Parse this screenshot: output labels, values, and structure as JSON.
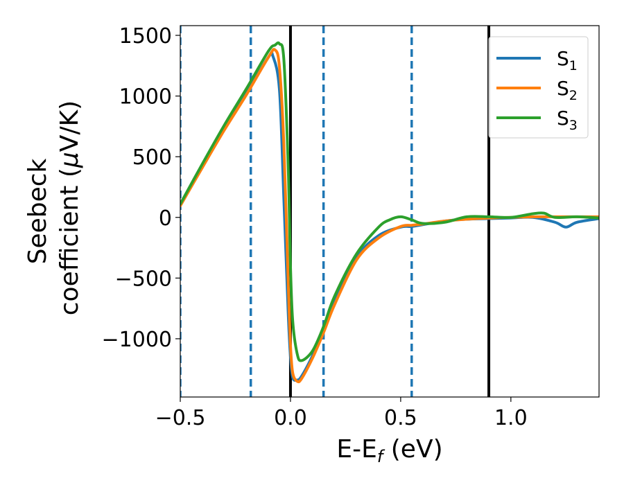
{
  "chart_data": {
    "type": "line",
    "xlabel": "E-E",
    "xlabel_sub": "f",
    "xlabel_unit": " (eV)",
    "ylabel_line1": "Seebeck",
    "ylabel_line2": "coefficient  (",
    "ylabel_mu": "μ",
    "ylabel_unit": "V/K)",
    "xlim": [
      -0.5,
      1.4
    ],
    "ylim": [
      -1480,
      1580
    ],
    "x_ticks": [
      -0.5,
      0.0,
      0.5,
      1.0
    ],
    "x_tick_labels": [
      "−0.5",
      "0.0",
      "0.5",
      "1.0"
    ],
    "y_ticks": [
      -1000,
      -500,
      0,
      500,
      1000,
      1500
    ],
    "y_tick_labels": [
      "−1000",
      "−500",
      "0",
      "500",
      "1000",
      "1500"
    ],
    "grid": false,
    "legend_position": "top-right",
    "vlines_dashed": [
      -0.5,
      -0.18,
      0.15,
      0.55
    ],
    "vlines_solid": [
      0.0,
      0.9
    ],
    "series": [
      {
        "name": "S",
        "name_sub": "1",
        "color": "#1f77b4",
        "x": [
          -0.5,
          -0.4,
          -0.3,
          -0.2,
          -0.1,
          -0.08,
          -0.05,
          -0.03,
          -0.01,
          0.0,
          0.01,
          0.03,
          0.05,
          0.1,
          0.15,
          0.2,
          0.3,
          0.4,
          0.5,
          0.55,
          0.6,
          0.7,
          0.8,
          0.9,
          1.0,
          1.1,
          1.2,
          1.25,
          1.3,
          1.4
        ],
        "y": [
          100,
          420,
          730,
          1020,
          1320,
          1330,
          1050,
          150,
          -800,
          -1150,
          -1320,
          -1340,
          -1310,
          -1140,
          -930,
          -700,
          -330,
          -150,
          -80,
          -75,
          -60,
          -30,
          -15,
          -10,
          -5,
          0,
          -40,
          -80,
          -40,
          -10
        ]
      },
      {
        "name": "S",
        "name_sub": "2",
        "color": "#ff7f0e",
        "x": [
          -0.5,
          -0.4,
          -0.3,
          -0.2,
          -0.1,
          -0.07,
          -0.05,
          -0.03,
          -0.01,
          0.0,
          0.01,
          0.03,
          0.05,
          0.1,
          0.15,
          0.2,
          0.3,
          0.4,
          0.5,
          0.55,
          0.6,
          0.7,
          0.8,
          0.9,
          1.0,
          1.1,
          1.2,
          1.3,
          1.4
        ],
        "y": [
          95,
          410,
          720,
          1010,
          1320,
          1380,
          1240,
          600,
          -550,
          -1050,
          -1280,
          -1350,
          -1330,
          -1160,
          -950,
          -720,
          -350,
          -170,
          -75,
          -65,
          -55,
          -30,
          -15,
          -5,
          0,
          5,
          5,
          5,
          5
        ]
      },
      {
        "name": "S",
        "name_sub": "3",
        "color": "#2ca02c",
        "x": [
          -0.5,
          -0.4,
          -0.3,
          -0.2,
          -0.1,
          -0.07,
          -0.05,
          -0.03,
          -0.01,
          0.0,
          0.01,
          0.03,
          0.05,
          0.1,
          0.15,
          0.2,
          0.3,
          0.4,
          0.45,
          0.5,
          0.55,
          0.6,
          0.7,
          0.8,
          0.9,
          1.0,
          1.1,
          1.15,
          1.2,
          1.3,
          1.4
        ],
        "y": [
          110,
          440,
          760,
          1060,
          1370,
          1420,
          1430,
          1300,
          400,
          -400,
          -850,
          -1120,
          -1180,
          -1100,
          -900,
          -650,
          -300,
          -80,
          -20,
          5,
          -20,
          -50,
          -40,
          5,
          5,
          0,
          30,
          35,
          0,
          5,
          -5
        ]
      }
    ]
  }
}
